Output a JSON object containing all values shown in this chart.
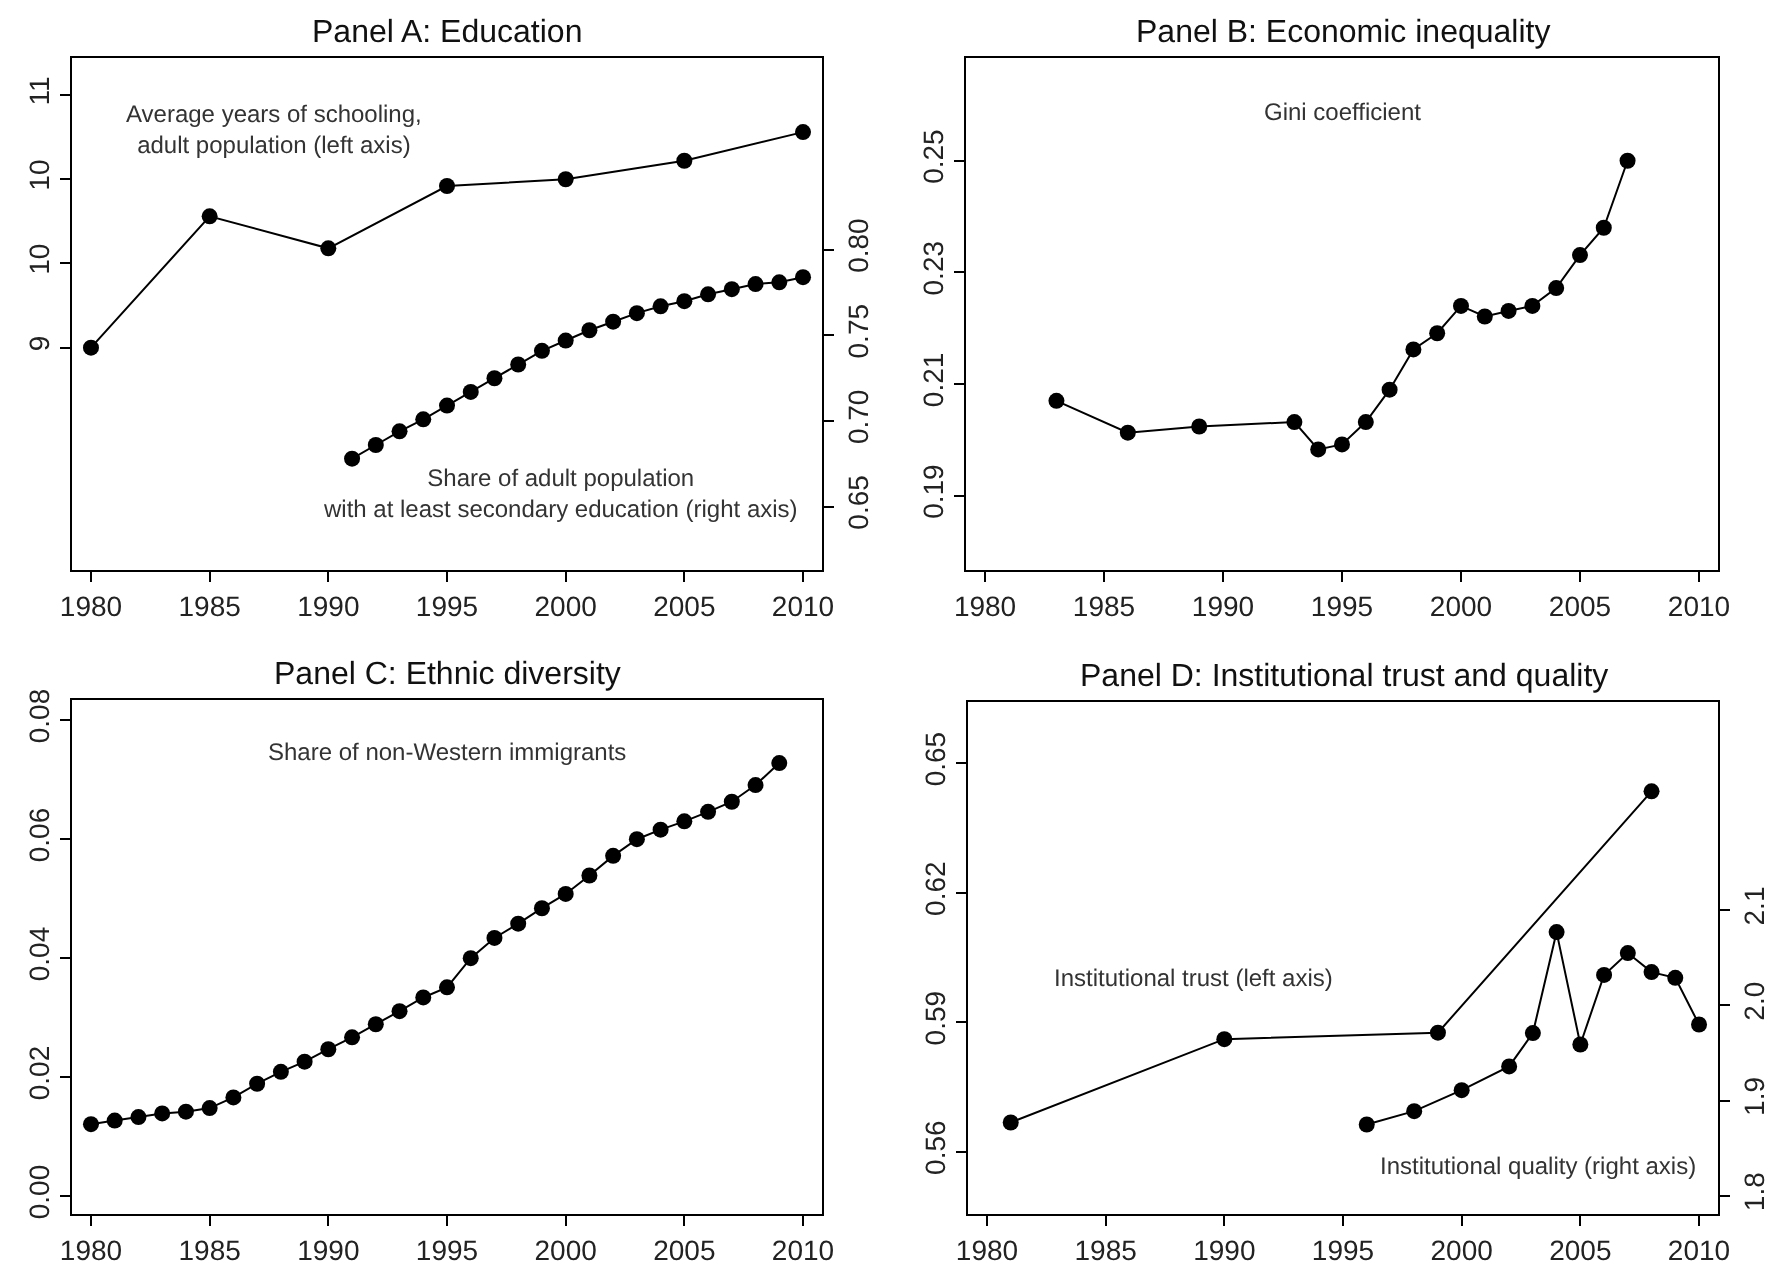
{
  "chart_data": [
    {
      "type": "line",
      "title": "Panel A: Education",
      "xlim": [
        1979.2,
        2010.8
      ],
      "xticks": [
        1980,
        1985,
        1990,
        1995,
        2000,
        2005,
        2010
      ],
      "ylim": [
        7.68,
        10.72
      ],
      "yticks": [
        9,
        {
          "value": 9.5,
          "label": "10"
        },
        10,
        {
          "value": 10.5,
          "label": "11"
        }
      ],
      "y2lim": [
        0.613,
        0.912
      ],
      "y2ticks": [
        0.65,
        {
          "value": 0.7,
          "label": "0.70"
        },
        0.75,
        {
          "value": 0.8,
          "label": "0.80"
        }
      ],
      "marker": "circle",
      "line_style": "solid",
      "series": [
        {
          "color": "#000000",
          "x": [
            1980,
            1985,
            1990,
            1995,
            2000,
            2005,
            2010
          ],
          "values": [
            9.0,
            9.78,
            9.59,
            9.96,
            10.0,
            10.11,
            10.28
          ]
        },
        {
          "color": "#000000",
          "axis": "y2",
          "x": [
            1991,
            1992,
            1993,
            1994,
            1995,
            1996,
            1997,
            1998,
            1999,
            2000,
            2001,
            2002,
            2003,
            2004,
            2005,
            2006,
            2007,
            2008,
            2009,
            2010
          ],
          "values": [
            0.678,
            0.686,
            0.694,
            0.701,
            0.709,
            0.717,
            0.725,
            0.733,
            0.741,
            0.747,
            0.753,
            0.758,
            0.763,
            0.767,
            0.77,
            0.774,
            0.777,
            0.78,
            0.781,
            0.784
          ]
        }
      ],
      "annotations": [
        "Average years of schooling,\nadult population (left axis)",
        "Share of adult population\nwith at least secondary education (right axis)"
      ]
    },
    {
      "type": "line",
      "title": "Panel B: Economic inequality",
      "xlim": [
        1979.2,
        2010.8
      ],
      "xticks": [
        1980,
        1985,
        1990,
        1995,
        2000,
        2005,
        2010
      ],
      "ylim": [
        0.1767,
        0.2684
      ],
      "yticks": [
        0.19,
        0.21,
        0.23,
        0.25
      ],
      "marker": "circle",
      "line_style": "solid",
      "series": [
        {
          "color": "#000000",
          "x": [
            1983,
            1986,
            1989,
            1993,
            1994,
            1995,
            1996,
            1997,
            1998,
            1999,
            2000,
            2001,
            2002,
            2003,
            2004,
            2005,
            2006,
            2007
          ],
          "values": [
            0.207,
            0.2013,
            0.2024,
            0.2032,
            0.1983,
            0.1992,
            0.2032,
            0.209,
            0.2162,
            0.2191,
            0.224,
            0.2221,
            0.2231,
            0.224,
            0.2272,
            0.2331,
            0.238,
            0.25
          ]
        }
      ],
      "annotations": [
        "Gini coefficient"
      ]
    },
    {
      "type": "line",
      "title": "Panel C: Ethnic diversity",
      "xlim": [
        1979.2,
        2010.8
      ],
      "xticks": [
        1980,
        1985,
        1990,
        1995,
        2000,
        2005,
        2010
      ],
      "ylim": [
        -0.003,
        0.0834
      ],
      "yticks": [
        {
          "value": 0,
          "label": "0.00"
        },
        0.02,
        0.04,
        0.06,
        0.08
      ],
      "marker": "circle",
      "line_style": "solid",
      "series": [
        {
          "color": "#000000",
          "x": [
            1980,
            1981,
            1982,
            1983,
            1984,
            1985,
            1986,
            1987,
            1988,
            1989,
            1990,
            1991,
            1992,
            1993,
            1994,
            1995,
            1996,
            1997,
            1998,
            1999,
            2000,
            2001,
            2002,
            2003,
            2004,
            2005,
            2006,
            2007,
            2008,
            2009
          ],
          "values": [
            0.0121,
            0.0127,
            0.0133,
            0.0139,
            0.0142,
            0.0148,
            0.0166,
            0.0189,
            0.0209,
            0.0226,
            0.0247,
            0.0267,
            0.0289,
            0.0311,
            0.0334,
            0.0351,
            0.04,
            0.0434,
            0.0458,
            0.0484,
            0.0508,
            0.0539,
            0.0572,
            0.06,
            0.0616,
            0.063,
            0.0646,
            0.0663,
            0.0691,
            0.0728
          ]
        }
      ],
      "annotations": [
        "Share of non-Western immigrants"
      ]
    },
    {
      "type": "line",
      "title": "Panel D: Institutional trust and quality",
      "xlim": [
        1979.2,
        2010.8
      ],
      "xticks": [
        1980,
        1985,
        1990,
        1995,
        2000,
        2005,
        2010
      ],
      "ylim": [
        0.5456,
        0.6642
      ],
      "yticks": [
        0.56,
        0.59,
        0.62,
        0.65
      ],
      "y2lim": [
        1.781,
        2.3186
      ],
      "y2ticks": [
        1.8,
        1.9,
        {
          "value": 2,
          "label": "2.0"
        },
        2.1
      ],
      "marker": "circle",
      "line_style": "solid",
      "series": [
        {
          "color": "#000000",
          "x": [
            1981,
            1990,
            1999,
            2008
          ],
          "values": [
            0.5668,
            0.5861,
            0.5876,
            0.6435
          ]
        },
        {
          "color": "#000000",
          "axis": "y2",
          "x": [
            1996,
            1998,
            2000,
            2002,
            2003,
            2004,
            2005,
            2006,
            2007,
            2008,
            2009,
            2010
          ],
          "values": [
            1.875,
            1.889,
            1.911,
            1.936,
            1.971,
            2.077,
            1.959,
            2.032,
            2.055,
            2.035,
            2.029,
            1.98
          ]
        }
      ],
      "annotations": [
        "Institutional trust (left axis)",
        "Institutional quality (right axis)"
      ]
    }
  ]
}
